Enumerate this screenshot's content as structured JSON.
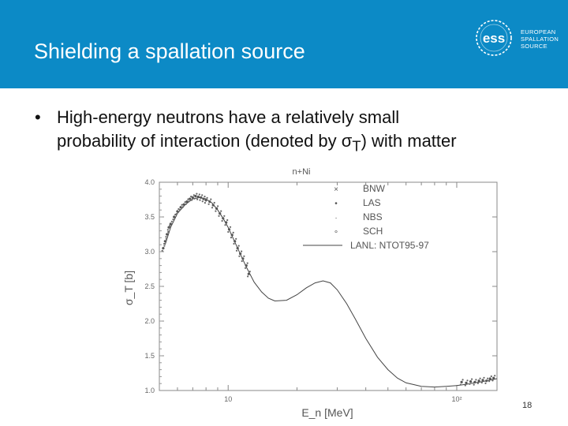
{
  "slide": {
    "title": "Shielding a spallation source",
    "bullet_before": "High-energy neutrons have a relatively small probability of interaction (denoted by σ",
    "bullet_sub": "T",
    "bullet_after": ") with matter",
    "slide_number": "18",
    "header_color": "#0c8ac6"
  },
  "logo": {
    "mark": "ess",
    "line1": "EUROPEAN",
    "line2": "SPALLATION",
    "line3": "SOURCE"
  },
  "chart_data": {
    "type": "scatter",
    "title": "n+Ni",
    "xlabel": "E_n [MeV]",
    "ylabel": "σ_T [b]",
    "xscale": "log",
    "xlim": [
      5,
      150
    ],
    "ylim": [
      1.0,
      4.0
    ],
    "x_ticks": [
      {
        "value": 10,
        "label": "10"
      },
      {
        "value": 100,
        "label": "10²"
      }
    ],
    "y_ticks": [
      1.0,
      1.5,
      2.0,
      2.5,
      3.0,
      3.5,
      4.0
    ],
    "y_tick_labels": [
      "1.0",
      "1.5",
      "2.0",
      "2.5",
      "3.0",
      "3.5",
      "4.0"
    ],
    "legend": {
      "position": "top-right",
      "entries": [
        {
          "label": "BNW",
          "marker": "×"
        },
        {
          "label": "LAS",
          "marker": "•"
        },
        {
          "label": "NBS",
          "marker": "·"
        },
        {
          "label": "SCH",
          "marker": "∘"
        },
        {
          "label": "LANL: NTOT95-97",
          "marker": "line"
        }
      ]
    },
    "curve": {
      "name": "LANL: NTOT95-97",
      "x": [
        5.3,
        5.6,
        6,
        6.5,
        7,
        7.5,
        8,
        8.5,
        9,
        9.5,
        10,
        11,
        12,
        13,
        14,
        15,
        16,
        18,
        20,
        22,
        24,
        26,
        28,
        30,
        33,
        36,
        40,
        45,
        50,
        55,
        60,
        70,
        80,
        90,
        100,
        110,
        120,
        130,
        140,
        150
      ],
      "y": [
        3.1,
        3.35,
        3.55,
        3.68,
        3.76,
        3.78,
        3.76,
        3.7,
        3.6,
        3.48,
        3.35,
        3.05,
        2.78,
        2.56,
        2.42,
        2.33,
        2.29,
        2.3,
        2.38,
        2.48,
        2.55,
        2.58,
        2.55,
        2.45,
        2.25,
        2.03,
        1.75,
        1.48,
        1.3,
        1.18,
        1.11,
        1.06,
        1.05,
        1.06,
        1.07,
        1.09,
        1.11,
        1.13,
        1.15,
        1.17
      ]
    },
    "measurements": {
      "name": "BNW/LAS/NBS/SCH",
      "x": [
        5.2,
        5.3,
        5.4,
        5.5,
        5.6,
        5.8,
        6.0,
        6.2,
        6.4,
        6.6,
        6.8,
        7.0,
        7.2,
        7.4,
        7.6,
        7.8,
        8.0,
        8.3,
        8.6,
        8.9,
        9.2,
        9.5,
        9.8,
        10.1,
        10.4,
        10.7,
        11.0,
        11.3,
        11.6,
        12.0,
        12.3,
        105,
        110,
        115,
        120,
        125,
        130,
        135,
        140,
        145
      ],
      "y": [
        3.05,
        3.15,
        3.25,
        3.35,
        3.4,
        3.5,
        3.58,
        3.64,
        3.68,
        3.72,
        3.76,
        3.78,
        3.8,
        3.79,
        3.78,
        3.76,
        3.74,
        3.72,
        3.67,
        3.62,
        3.55,
        3.48,
        3.42,
        3.32,
        3.24,
        3.15,
        3.05,
        2.97,
        2.9,
        2.8,
        2.68,
        1.12,
        1.11,
        1.13,
        1.12,
        1.14,
        1.15,
        1.14,
        1.17,
        1.18
      ]
    }
  }
}
